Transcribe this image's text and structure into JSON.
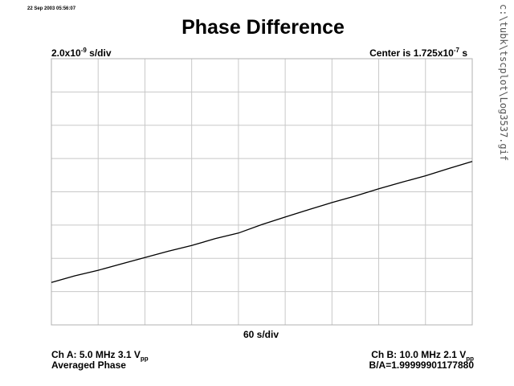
{
  "header": {
    "timestamp": "22 Sep 2003 05:56:07",
    "title": "Phase Difference"
  },
  "scale": {
    "vertical_prefix": "2.0x10",
    "vertical_exp": "-9",
    "vertical_suffix": " s/div",
    "center_prefix": "Center is 1.725x10",
    "center_exp": "-7",
    "center_suffix": " s",
    "horizontal": "60 s/div"
  },
  "channels": {
    "a_text": "Ch A: 5.0 MHz 3.1 V",
    "a_sub": "pp",
    "b_text": "Ch B: 10.0 MHz 2.1 V",
    "b_sub": "pp",
    "mode": "Averaged Phase",
    "ratio": "B/A=1.99999901177880"
  },
  "file_path": "c:\\tubk\\tscplot\\Log3537.gif",
  "chart_data": {
    "type": "line",
    "title": "Phase Difference",
    "x_unit": "s",
    "x_per_div": 60,
    "y_unit": "s",
    "y_per_div": 2e-09,
    "y_center": 1.725e-07,
    "xlim": [
      0,
      540
    ],
    "ylim": [
      1.645e-07,
      1.805e-07
    ],
    "grid": true,
    "divisions": {
      "x": 9,
      "y": 8
    },
    "series": [
      {
        "color": "#000000",
        "x": [
          0,
          30,
          60,
          90,
          120,
          150,
          180,
          210,
          240,
          270,
          300,
          330,
          360,
          390,
          420,
          450,
          480,
          510,
          540
        ],
        "y": [
          1.6705e-07,
          1.6745e-07,
          1.6778e-07,
          1.6817e-07,
          1.6855e-07,
          1.6893e-07,
          1.6927e-07,
          1.6968e-07,
          1.7002e-07,
          1.7053e-07,
          1.7098e-07,
          1.7142e-07,
          1.7185e-07,
          1.7225e-07,
          1.7268e-07,
          1.7308e-07,
          1.7346e-07,
          1.739e-07,
          1.7432e-07
        ]
      }
    ]
  }
}
